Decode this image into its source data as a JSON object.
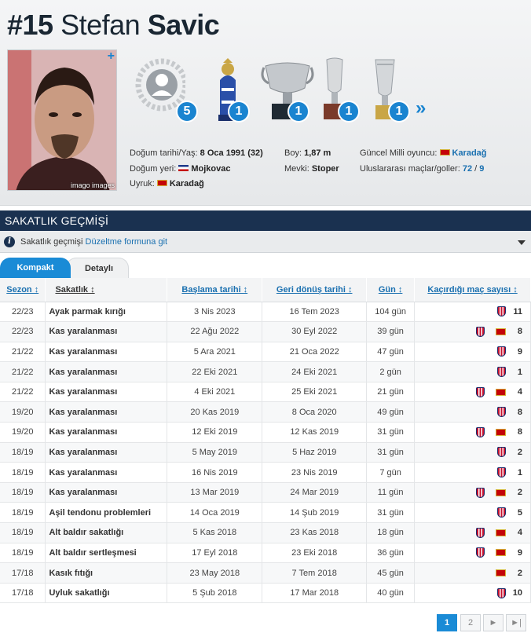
{
  "player": {
    "number": "#15",
    "first_name": "Stefan",
    "last_name": "Savic",
    "photo_credit": "imago images"
  },
  "trophies": [
    {
      "name": "generic-award-icon",
      "count": "5"
    },
    {
      "name": "premier-league-trophy-icon",
      "count": "1"
    },
    {
      "name": "la-liga-trophy-icon",
      "count": "1"
    },
    {
      "name": "super-cup-trophy-icon",
      "count": "1"
    },
    {
      "name": "europa-league-trophy-icon",
      "count": "1"
    }
  ],
  "trophies_more": "»",
  "info": {
    "birth_label": "Doğum tarihi/Yaş:",
    "birth_value": "8 Oca 1991 (32)",
    "place_label": "Doğum yeri:",
    "place_value": "Mojkovac",
    "citizenship_label": "Uyruk:",
    "citizenship_value": "Karadağ",
    "height_label": "Boy:",
    "height_value": "1,87 m",
    "position_label": "Mevki:",
    "position_value": "Stoper",
    "national_label": "Güncel Milli oyuncu:",
    "national_value": "Karadağ",
    "caps_label": "Uluslararası maçlar/goller:",
    "caps_value": "72",
    "caps_sep": " / ",
    "goals_value": "9"
  },
  "section": {
    "title": "SAKATLIK GEÇMİŞİ",
    "bar_text": "Sakatlık geçmişi",
    "bar_link": "Düzeltme formuna git"
  },
  "tabs": {
    "compact": "Kompakt",
    "detailed": "Detaylı"
  },
  "columns": {
    "season": "Sezon ↕",
    "injury": "Sakatlık ↕",
    "from": "Başlama tarihi ↕",
    "until": "Geri dönüş tarihi ↕",
    "days": "Gün ↕",
    "games": "Kaçırdığı maç sayısı ↕"
  },
  "rows": [
    {
      "season": "22/23",
      "injury": "Ayak parmak kırığı",
      "from": "3 Nis 2023",
      "until": "16 Tem 2023",
      "days": "104 gün",
      "club": true,
      "nat": false,
      "games": "11"
    },
    {
      "season": "22/23",
      "injury": "Kas yaralanması",
      "from": "22 Ağu 2022",
      "until": "30 Eyl 2022",
      "days": "39 gün",
      "club": true,
      "nat": true,
      "games": "8"
    },
    {
      "season": "21/22",
      "injury": "Kas yaralanması",
      "from": "5 Ara 2021",
      "until": "21 Oca 2022",
      "days": "47 gün",
      "club": true,
      "nat": false,
      "games": "9"
    },
    {
      "season": "21/22",
      "injury": "Kas yaralanması",
      "from": "22 Eki 2021",
      "until": "24 Eki 2021",
      "days": "2 gün",
      "club": true,
      "nat": false,
      "games": "1"
    },
    {
      "season": "21/22",
      "injury": "Kas yaralanması",
      "from": "4 Eki 2021",
      "until": "25 Eki 2021",
      "days": "21 gün",
      "club": true,
      "nat": true,
      "games": "4"
    },
    {
      "season": "19/20",
      "injury": "Kas yaralanması",
      "from": "20 Kas 2019",
      "until": "8 Oca 2020",
      "days": "49 gün",
      "club": true,
      "nat": false,
      "games": "8"
    },
    {
      "season": "19/20",
      "injury": "Kas yaralanması",
      "from": "12 Eki 2019",
      "until": "12 Kas 2019",
      "days": "31 gün",
      "club": true,
      "nat": true,
      "games": "8"
    },
    {
      "season": "18/19",
      "injury": "Kas yaralanması",
      "from": "5 May 2019",
      "until": "5 Haz 2019",
      "days": "31 gün",
      "club": true,
      "nat": false,
      "games": "2"
    },
    {
      "season": "18/19",
      "injury": "Kas yaralanması",
      "from": "16 Nis 2019",
      "until": "23 Nis 2019",
      "days": "7 gün",
      "club": true,
      "nat": false,
      "games": "1"
    },
    {
      "season": "18/19",
      "injury": "Kas yaralanması",
      "from": "13 Mar 2019",
      "until": "24 Mar 2019",
      "days": "11 gün",
      "club": true,
      "nat": true,
      "games": "2"
    },
    {
      "season": "18/19",
      "injury": "Aşil tendonu problemleri",
      "from": "14 Oca 2019",
      "until": "14 Şub 2019",
      "days": "31 gün",
      "club": true,
      "nat": false,
      "games": "5"
    },
    {
      "season": "18/19",
      "injury": "Alt baldır sakatlığı",
      "from": "5 Kas 2018",
      "until": "23 Kas 2018",
      "days": "18 gün",
      "club": true,
      "nat": true,
      "games": "4"
    },
    {
      "season": "18/19",
      "injury": "Alt baldır sertleşmesi",
      "from": "17 Eyl 2018",
      "until": "23 Eki 2018",
      "days": "36 gün",
      "club": true,
      "nat": true,
      "games": "9"
    },
    {
      "season": "17/18",
      "injury": "Kasık fıtığı",
      "from": "23 May 2018",
      "until": "7 Tem 2018",
      "days": "45 gün",
      "club": false,
      "nat": true,
      "games": "2"
    },
    {
      "season": "17/18",
      "injury": "Uyluk sakatlığı",
      "from": "5 Şub 2018",
      "until": "17 Mar 2018",
      "days": "40 gün",
      "club": true,
      "nat": false,
      "games": "10"
    }
  ],
  "pagination": {
    "page1": "1",
    "page2": "2",
    "next": "►",
    "last": "►|"
  },
  "colors": {
    "accent": "#1a8bd6",
    "header_dark": "#1a3150",
    "link": "#1a70b0"
  }
}
